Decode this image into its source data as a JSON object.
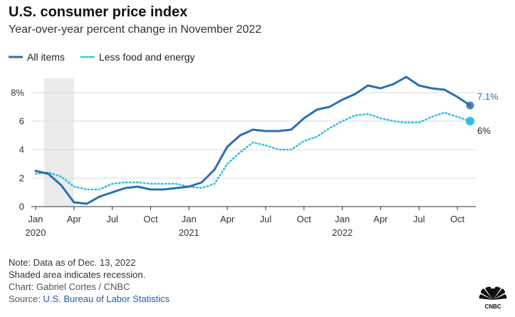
{
  "title": "U.S. consumer price index",
  "subtitle": "Year-over-year percent change in November 2022",
  "legend": {
    "all_items": "All items",
    "core": "Less food and energy"
  },
  "notes": {
    "line1": "Note: Data as of Dec. 13, 2022",
    "line2": "Shaded area indicates recession.",
    "credit": "Chart: Gabriel Cortes / CNBC",
    "source_prefix": "Source: ",
    "source_link": "U.S. Bureau of Labor Statistics"
  },
  "logo": {
    "icon": "cnbc-peacock-icon",
    "text": "CNBC"
  },
  "colors": {
    "all_items": "#2a6fb0",
    "core": "#2cc0df",
    "recession": "#ebebeb",
    "grid": "#d9d9d9"
  },
  "chart_data": {
    "type": "line",
    "ylim": [
      0,
      9
    ],
    "yticks": [
      0,
      2,
      4,
      6,
      8
    ],
    "ytick_labels": [
      "0",
      "2",
      "4",
      "6",
      "8%"
    ],
    "grid": true,
    "legend_position": "top-left",
    "x": [
      "2020-01",
      "2020-02",
      "2020-03",
      "2020-04",
      "2020-05",
      "2020-06",
      "2020-07",
      "2020-08",
      "2020-09",
      "2020-10",
      "2020-11",
      "2020-12",
      "2021-01",
      "2021-02",
      "2021-03",
      "2021-04",
      "2021-05",
      "2021-06",
      "2021-07",
      "2021-08",
      "2021-09",
      "2021-10",
      "2021-11",
      "2021-12",
      "2022-01",
      "2022-02",
      "2022-03",
      "2022-04",
      "2022-05",
      "2022-06",
      "2022-07",
      "2022-08",
      "2022-09",
      "2022-10",
      "2022-11"
    ],
    "xticks": [
      {
        "x": "2020-01",
        "label": "Jan",
        "year": "2020"
      },
      {
        "x": "2020-04",
        "label": "Apr"
      },
      {
        "x": "2020-07",
        "label": "Jul"
      },
      {
        "x": "2020-10",
        "label": "Oct"
      },
      {
        "x": "2021-01",
        "label": "Jan",
        "year": "2021"
      },
      {
        "x": "2021-04",
        "label": "Apr"
      },
      {
        "x": "2021-07",
        "label": "Jul"
      },
      {
        "x": "2021-10",
        "label": "Oct"
      },
      {
        "x": "2022-01",
        "label": "Jan",
        "year": "2022"
      },
      {
        "x": "2022-04",
        "label": "Apr"
      },
      {
        "x": "2022-07",
        "label": "Jul"
      },
      {
        "x": "2022-10",
        "label": "Oct"
      }
    ],
    "recession": [
      "2020-02",
      "2020-04"
    ],
    "series": [
      {
        "name": "All items",
        "style": "solid",
        "values": [
          2.5,
          2.3,
          1.5,
          0.3,
          0.2,
          0.7,
          1.0,
          1.3,
          1.4,
          1.2,
          1.2,
          1.3,
          1.4,
          1.7,
          2.6,
          4.2,
          5.0,
          5.4,
          5.3,
          5.3,
          5.4,
          6.2,
          6.8,
          7.0,
          7.5,
          7.9,
          8.5,
          8.3,
          8.6,
          9.1,
          8.5,
          8.3,
          8.2,
          7.7,
          7.1
        ],
        "end_label": "7.1%"
      },
      {
        "name": "Less food and energy",
        "style": "dotted",
        "values": [
          2.3,
          2.4,
          2.1,
          1.4,
          1.2,
          1.2,
          1.6,
          1.7,
          1.7,
          1.6,
          1.6,
          1.6,
          1.4,
          1.3,
          1.6,
          3.0,
          3.8,
          4.5,
          4.3,
          4.0,
          4.0,
          4.6,
          4.9,
          5.5,
          6.0,
          6.4,
          6.5,
          6.2,
          6.0,
          5.9,
          5.9,
          6.3,
          6.6,
          6.3,
          6.0
        ],
        "end_label": "6%"
      }
    ]
  }
}
